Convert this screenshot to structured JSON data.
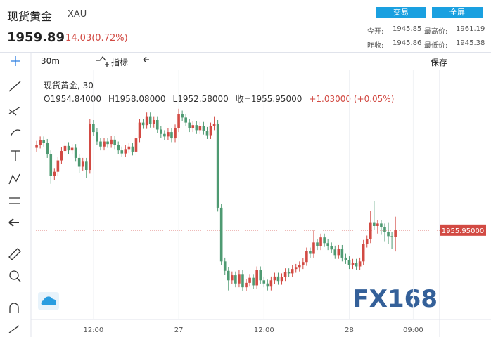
{
  "header": {
    "title": "现货黄金",
    "symbol": "XAU",
    "price": "1959.89",
    "change": "14.03(0.72%)",
    "buttons": [
      "交易",
      "全屏"
    ],
    "stats": [
      {
        "label": "今开:",
        "value": "1945.85"
      },
      {
        "label": "最高价:",
        "value": "1961.19"
      },
      {
        "label": "昨收:",
        "value": "1945.86"
      },
      {
        "label": "最低价:",
        "value": "1945.38"
      }
    ]
  },
  "toolbar": {
    "interval": "30m",
    "indicators": "指标",
    "save": "保存"
  },
  "watermark": "FX168",
  "chart_data": {
    "type": "candlestick",
    "title": "现货黄金, 30",
    "ohlc_legend": [
      "O1954.84000",
      "H1958.08000",
      "L1952.58000",
      "收=1955.95000",
      "+1.03000 (+0.05%)"
    ],
    "up_color": "#d24a43",
    "down_color": "#4e9a72",
    "xlim": [
      -1.4,
      113.45
    ],
    "ylim": [
      1941.8,
      1981.3
    ],
    "xticks": [
      {
        "value": 16,
        "label": "12:00"
      },
      {
        "value": 40,
        "label": "27"
      },
      {
        "value": 64,
        "label": "12:00"
      },
      {
        "value": 88,
        "label": "28"
      },
      {
        "value": 106,
        "label": "09:00"
      }
    ],
    "last_price": {
      "value": 1955.95,
      "label": "1955.95000"
    },
    "candles": [
      [
        1969.0,
        1970.1,
        1968.4,
        1969.5
      ],
      [
        1969.5,
        1970.8,
        1968.9,
        1970.2
      ],
      [
        1970.2,
        1970.8,
        1969.2,
        1969.8
      ],
      [
        1969.8,
        1970.4,
        1967.4,
        1968.0
      ],
      [
        1968.0,
        1968.6,
        1963.3,
        1964.5
      ],
      [
        1964.5,
        1965.8,
        1963.9,
        1965.2
      ],
      [
        1965.2,
        1967.6,
        1964.6,
        1967.0
      ],
      [
        1967.0,
        1969.1,
        1966.4,
        1968.5
      ],
      [
        1968.5,
        1969.9,
        1967.9,
        1969.3
      ],
      [
        1969.3,
        1969.9,
        1968.0,
        1968.6
      ],
      [
        1968.6,
        1969.6,
        1968.0,
        1969.0
      ],
      [
        1969.0,
        1969.6,
        1966.8,
        1967.4
      ],
      [
        1967.4,
        1968.0,
        1965.0,
        1966.0
      ],
      [
        1966.0,
        1967.4,
        1965.4,
        1966.8
      ],
      [
        1966.8,
        1967.4,
        1964.2,
        1965.5
      ],
      [
        1965.5,
        1973.6,
        1964.9,
        1972.8
      ],
      [
        1972.8,
        1973.4,
        1970.9,
        1971.5
      ],
      [
        1971.5,
        1972.1,
        1969.4,
        1970.0
      ],
      [
        1970.0,
        1970.6,
        1968.6,
        1969.2
      ],
      [
        1969.2,
        1970.6,
        1968.6,
        1970.0
      ],
      [
        1970.0,
        1970.6,
        1969.0,
        1969.6
      ],
      [
        1969.6,
        1970.9,
        1969.0,
        1970.3
      ],
      [
        1970.3,
        1970.9,
        1968.8,
        1969.4
      ],
      [
        1969.4,
        1970.0,
        1968.0,
        1968.6
      ],
      [
        1968.6,
        1969.2,
        1967.5,
        1968.1
      ],
      [
        1968.1,
        1969.4,
        1967.5,
        1968.8
      ],
      [
        1968.8,
        1969.8,
        1968.2,
        1969.2
      ],
      [
        1969.2,
        1969.8,
        1967.8,
        1968.4
      ],
      [
        1968.4,
        1971.1,
        1967.8,
        1970.5
      ],
      [
        1970.5,
        1973.6,
        1969.9,
        1973.0
      ],
      [
        1973.0,
        1973.6,
        1972.0,
        1972.6
      ],
      [
        1972.6,
        1974.6,
        1972.0,
        1974.0
      ],
      [
        1974.0,
        1974.6,
        1972.2,
        1972.8
      ],
      [
        1972.8,
        1974.0,
        1972.2,
        1973.4
      ],
      [
        1973.4,
        1974.0,
        1971.3,
        1971.9
      ],
      [
        1971.9,
        1972.5,
        1970.6,
        1971.2
      ],
      [
        1971.2,
        1971.8,
        1970.2,
        1970.8
      ],
      [
        1970.8,
        1972.1,
        1970.2,
        1971.5
      ],
      [
        1971.5,
        1972.1,
        1969.9,
        1970.5
      ],
      [
        1970.5,
        1972.7,
        1969.9,
        1972.1
      ],
      [
        1972.1,
        1975.2,
        1971.5,
        1974.3
      ],
      [
        1974.3,
        1974.9,
        1973.2,
        1973.8
      ],
      [
        1973.8,
        1974.4,
        1972.4,
        1973.0
      ],
      [
        1973.0,
        1973.6,
        1971.5,
        1972.1
      ],
      [
        1972.1,
        1973.2,
        1971.5,
        1972.6
      ],
      [
        1972.6,
        1973.2,
        1971.2,
        1971.8
      ],
      [
        1971.8,
        1973.1,
        1971.2,
        1972.5
      ],
      [
        1972.5,
        1973.1,
        1971.1,
        1971.7
      ],
      [
        1971.7,
        1972.3,
        1970.4,
        1971.0
      ],
      [
        1971.0,
        1973.0,
        1970.4,
        1972.4
      ],
      [
        1972.4,
        1974.0,
        1971.8,
        1972.8
      ],
      [
        1972.8,
        1973.4,
        1958.9,
        1959.5
      ],
      [
        1959.5,
        1960.1,
        1950.4,
        1951.0
      ],
      [
        1951.0,
        1951.6,
        1948.9,
        1949.5
      ],
      [
        1949.5,
        1950.1,
        1946.4,
        1948.0
      ],
      [
        1948.0,
        1949.4,
        1947.4,
        1948.8
      ],
      [
        1948.8,
        1949.4,
        1946.9,
        1947.5
      ],
      [
        1947.5,
        1949.6,
        1946.9,
        1949.0
      ],
      [
        1949.0,
        1949.6,
        1946.3,
        1946.9
      ],
      [
        1946.9,
        1948.2,
        1946.3,
        1947.6
      ],
      [
        1947.6,
        1949.0,
        1947.0,
        1948.4
      ],
      [
        1948.4,
        1949.0,
        1946.6,
        1947.2
      ],
      [
        1947.2,
        1950.2,
        1946.6,
        1949.6
      ],
      [
        1949.6,
        1950.2,
        1947.4,
        1948.0
      ],
      [
        1948.0,
        1948.6,
        1946.9,
        1947.5
      ],
      [
        1947.5,
        1948.1,
        1946.4,
        1947.0
      ],
      [
        1947.0,
        1948.6,
        1946.4,
        1948.0
      ],
      [
        1948.0,
        1949.2,
        1947.4,
        1948.6
      ],
      [
        1948.6,
        1949.2,
        1947.3,
        1947.9
      ],
      [
        1947.9,
        1949.1,
        1947.3,
        1948.5
      ],
      [
        1948.5,
        1949.9,
        1947.9,
        1949.3
      ],
      [
        1949.3,
        1949.9,
        1948.5,
        1949.1
      ],
      [
        1949.1,
        1950.4,
        1948.5,
        1949.8
      ],
      [
        1949.8,
        1950.6,
        1949.2,
        1950.0
      ],
      [
        1950.0,
        1951.0,
        1949.4,
        1950.4
      ],
      [
        1950.4,
        1951.5,
        1949.8,
        1950.9
      ],
      [
        1950.9,
        1953.2,
        1950.3,
        1952.6
      ],
      [
        1952.6,
        1953.2,
        1951.6,
        1952.2
      ],
      [
        1952.2,
        1955.9,
        1951.6,
        1954.0
      ],
      [
        1954.0,
        1954.6,
        1952.8,
        1953.4
      ],
      [
        1953.4,
        1955.4,
        1952.8,
        1954.8
      ],
      [
        1954.8,
        1955.4,
        1953.3,
        1953.9
      ],
      [
        1953.9,
        1954.5,
        1952.8,
        1953.4
      ],
      [
        1953.4,
        1954.0,
        1952.3,
        1952.9
      ],
      [
        1952.9,
        1953.5,
        1951.4,
        1952.0
      ],
      [
        1952.0,
        1953.6,
        1951.4,
        1953.0
      ],
      [
        1953.0,
        1953.6,
        1951.0,
        1951.6
      ],
      [
        1951.6,
        1952.2,
        1950.6,
        1951.2
      ],
      [
        1951.2,
        1951.8,
        1949.8,
        1950.4
      ],
      [
        1950.4,
        1951.4,
        1949.8,
        1950.8
      ],
      [
        1950.8,
        1951.4,
        1949.6,
        1950.2
      ],
      [
        1950.2,
        1951.6,
        1949.6,
        1951.0
      ],
      [
        1951.0,
        1954.4,
        1950.4,
        1953.8
      ],
      [
        1953.8,
        1955.1,
        1953.2,
        1954.5
      ],
      [
        1954.5,
        1959.0,
        1953.9,
        1957.2
      ],
      [
        1957.2,
        1960.5,
        1956.0,
        1956.6
      ],
      [
        1956.6,
        1957.6,
        1955.4,
        1957.0
      ],
      [
        1957.0,
        1957.6,
        1955.2,
        1956.4
      ],
      [
        1956.4,
        1957.0,
        1954.2,
        1955.6
      ],
      [
        1955.6,
        1957.2,
        1953.8,
        1955.0
      ],
      [
        1955.0,
        1955.6,
        1953.0,
        1954.84
      ],
      [
        1954.84,
        1958.08,
        1952.58,
        1955.95
      ]
    ]
  }
}
